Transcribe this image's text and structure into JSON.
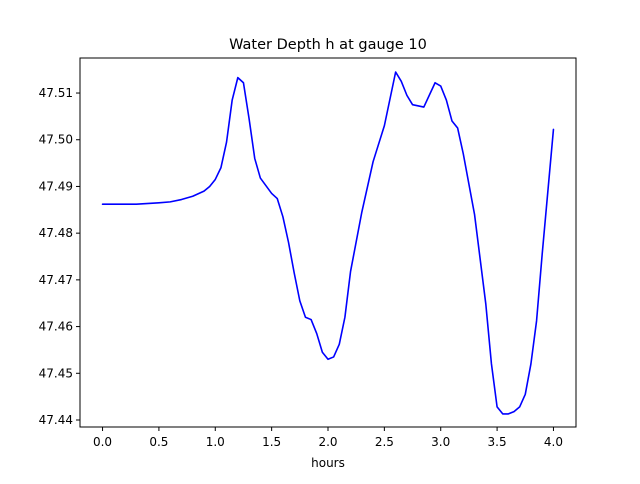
{
  "chart_data": {
    "type": "line",
    "title": "Water Depth h at gauge 10",
    "xlabel": "hours",
    "ylabel": "",
    "xlim": [
      -0.2,
      4.2
    ],
    "ylim": [
      47.4385,
      47.5175
    ],
    "grid": false,
    "legend": "none",
    "x_ticks": [
      0.0,
      0.5,
      1.0,
      1.5,
      2.0,
      2.5,
      3.0,
      3.5,
      4.0
    ],
    "x_tick_labels": [
      "0.0",
      "0.5",
      "1.0",
      "1.5",
      "2.0",
      "2.5",
      "3.0",
      "3.5",
      "4.0"
    ],
    "y_ticks": [
      47.44,
      47.45,
      47.46,
      47.47,
      47.48,
      47.49,
      47.5,
      47.51
    ],
    "y_tick_labels": [
      "47.44",
      "47.45",
      "47.46",
      "47.47",
      "47.48",
      "47.49",
      "47.50",
      "47.51"
    ],
    "series": [
      {
        "color": "#0000ff",
        "x": [
          0.0,
          0.3,
          0.5,
          0.6,
          0.7,
          0.8,
          0.9,
          0.95,
          1.0,
          1.05,
          1.1,
          1.15,
          1.2,
          1.25,
          1.3,
          1.35,
          1.4,
          1.5,
          1.55,
          1.6,
          1.65,
          1.7,
          1.75,
          1.8,
          1.85,
          1.9,
          1.95,
          2.0,
          2.05,
          2.1,
          2.15,
          2.2,
          2.3,
          2.4,
          2.5,
          2.6,
          2.65,
          2.7,
          2.75,
          2.85,
          2.95,
          3.0,
          3.05,
          3.1,
          3.15,
          3.2,
          3.3,
          3.4,
          3.45,
          3.5,
          3.55,
          3.6,
          3.65,
          3.7,
          3.75,
          3.8,
          3.85,
          3.9,
          4.0
        ],
        "y": [
          47.4862,
          47.4862,
          47.4865,
          47.4867,
          47.4872,
          47.4879,
          47.489,
          47.49,
          47.4915,
          47.494,
          47.4995,
          47.5085,
          47.5133,
          47.5122,
          47.5045,
          47.496,
          47.4918,
          47.4885,
          47.4874,
          47.4835,
          47.478,
          47.4715,
          47.4655,
          47.462,
          47.4615,
          47.4585,
          47.4545,
          47.453,
          47.4535,
          47.4562,
          47.462,
          47.4718,
          47.4845,
          47.4953,
          47.503,
          47.5145,
          47.5125,
          47.5095,
          47.5075,
          47.507,
          47.5122,
          47.5115,
          47.5085,
          47.504,
          47.5025,
          47.497,
          47.484,
          47.4648,
          47.452,
          47.4428,
          47.4413,
          47.4413,
          47.4418,
          47.4428,
          47.4455,
          47.452,
          47.4612,
          47.4755,
          47.5022
        ]
      }
    ]
  }
}
